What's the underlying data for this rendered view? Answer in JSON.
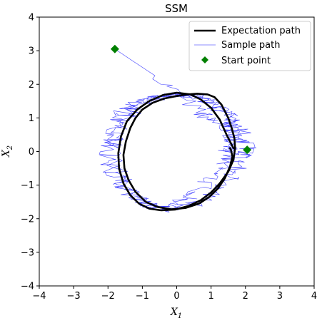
{
  "chart_data": {
    "type": "line",
    "title": "SSM",
    "xlabel_main": "X",
    "xlabel_sub": "1",
    "ylabel_main": "X",
    "ylabel_sub": "2",
    "xlim": [
      -4,
      4
    ],
    "ylim": [
      -4,
      4
    ],
    "xticks": [
      -4,
      -3,
      -2,
      -1,
      0,
      1,
      2,
      3,
      4
    ],
    "yticks": [
      -4,
      -3,
      -2,
      -1,
      0,
      1,
      2,
      3,
      4
    ],
    "xtick_labels": [
      "−4",
      "−3",
      "−2",
      "−1",
      "0",
      "1",
      "2",
      "3",
      "4"
    ],
    "ytick_labels": [
      "−4",
      "−3",
      "−2",
      "−1",
      "0",
      "1",
      "2",
      "3",
      "4"
    ],
    "grid": false,
    "legend_position": "top-right",
    "series": [
      {
        "name": "Expectation path",
        "color": "#000000",
        "style": "thick-solid",
        "x": [
          1.65,
          1.45,
          1.25,
          1.0,
          0.7,
          0.4,
          0.0,
          -0.4,
          -0.8,
          -1.15,
          -1.45,
          -1.62,
          -1.7,
          -1.68,
          -1.55,
          -1.35,
          -1.1,
          -0.8,
          -0.45,
          -0.05,
          0.35,
          0.7,
          1.0,
          1.25,
          1.5,
          1.65,
          1.7,
          1.68,
          1.6,
          1.5,
          1.4,
          1.3,
          1.1,
          0.9,
          0.6,
          0.3,
          0.0,
          -0.35,
          -0.7,
          -1.0,
          -1.2,
          -1.35,
          -1.48,
          -1.55,
          -1.52,
          -1.4,
          -1.2,
          -0.9,
          -0.55,
          -0.15,
          0.25,
          0.65,
          0.95,
          1.2,
          1.4,
          1.55,
          1.62,
          1.58,
          1.55
        ],
        "y": [
          0.1,
          0.5,
          0.95,
          1.3,
          1.55,
          1.7,
          1.75,
          1.68,
          1.5,
          1.25,
          0.9,
          0.45,
          -0.05,
          -0.5,
          -0.95,
          -1.3,
          -1.55,
          -1.7,
          -1.75,
          -1.73,
          -1.62,
          -1.45,
          -1.22,
          -0.95,
          -0.6,
          -0.25,
          0.1,
          0.4,
          0.7,
          1.0,
          1.2,
          1.4,
          1.62,
          1.7,
          1.72,
          1.7,
          1.65,
          1.58,
          1.45,
          1.25,
          1.0,
          0.7,
          0.3,
          -0.1,
          -0.5,
          -0.85,
          -1.2,
          -1.5,
          -1.65,
          -1.72,
          -1.68,
          -1.55,
          -1.35,
          -1.1,
          -0.8,
          -0.45,
          -0.15,
          0.05,
          0.1
        ]
      },
      {
        "name": "Sample path",
        "color": "#0000ff",
        "style": "thin-solid"
      },
      {
        "name": "Start point",
        "color": "#008000",
        "marker": "diamond",
        "points": [
          {
            "x": -1.8,
            "y": 3.05
          },
          {
            "x": 2.05,
            "y": 0.05
          }
        ]
      }
    ],
    "sample_path_anchors": {
      "x": [
        -1.8,
        -0.4,
        0.6,
        1.1,
        1.5,
        1.7,
        1.6,
        1.3,
        0.9,
        0.3,
        -0.3,
        -0.9,
        -1.4,
        -1.7,
        -1.9,
        -1.8,
        -1.6,
        -1.3,
        -0.8,
        -0.2,
        0.5,
        1.1,
        1.6,
        1.9,
        2.05,
        1.8,
        1.5,
        1.0,
        0.4,
        -0.2,
        -0.8,
        -1.3,
        -1.7,
        -2.0,
        -1.9,
        -1.6,
        -1.2,
        -0.6,
        0.0,
        0.6,
        1.2,
        1.6,
        1.7,
        1.4
      ],
      "y": [
        3.05,
        2.1,
        1.2,
        0.9,
        0.7,
        0.4,
        0.0,
        -0.4,
        -0.9,
        -1.4,
        -1.7,
        -1.6,
        -1.2,
        -0.6,
        0.0,
        0.6,
        1.1,
        1.4,
        1.6,
        1.7,
        1.65,
        1.4,
        1.0,
        0.5,
        0.05,
        -0.4,
        -0.9,
        -1.3,
        -1.6,
        -1.75,
        -1.6,
        -1.3,
        -0.8,
        -0.3,
        0.3,
        0.9,
        1.3,
        1.55,
        1.7,
        1.6,
        1.3,
        0.8,
        0.3,
        0.0
      ]
    }
  }
}
